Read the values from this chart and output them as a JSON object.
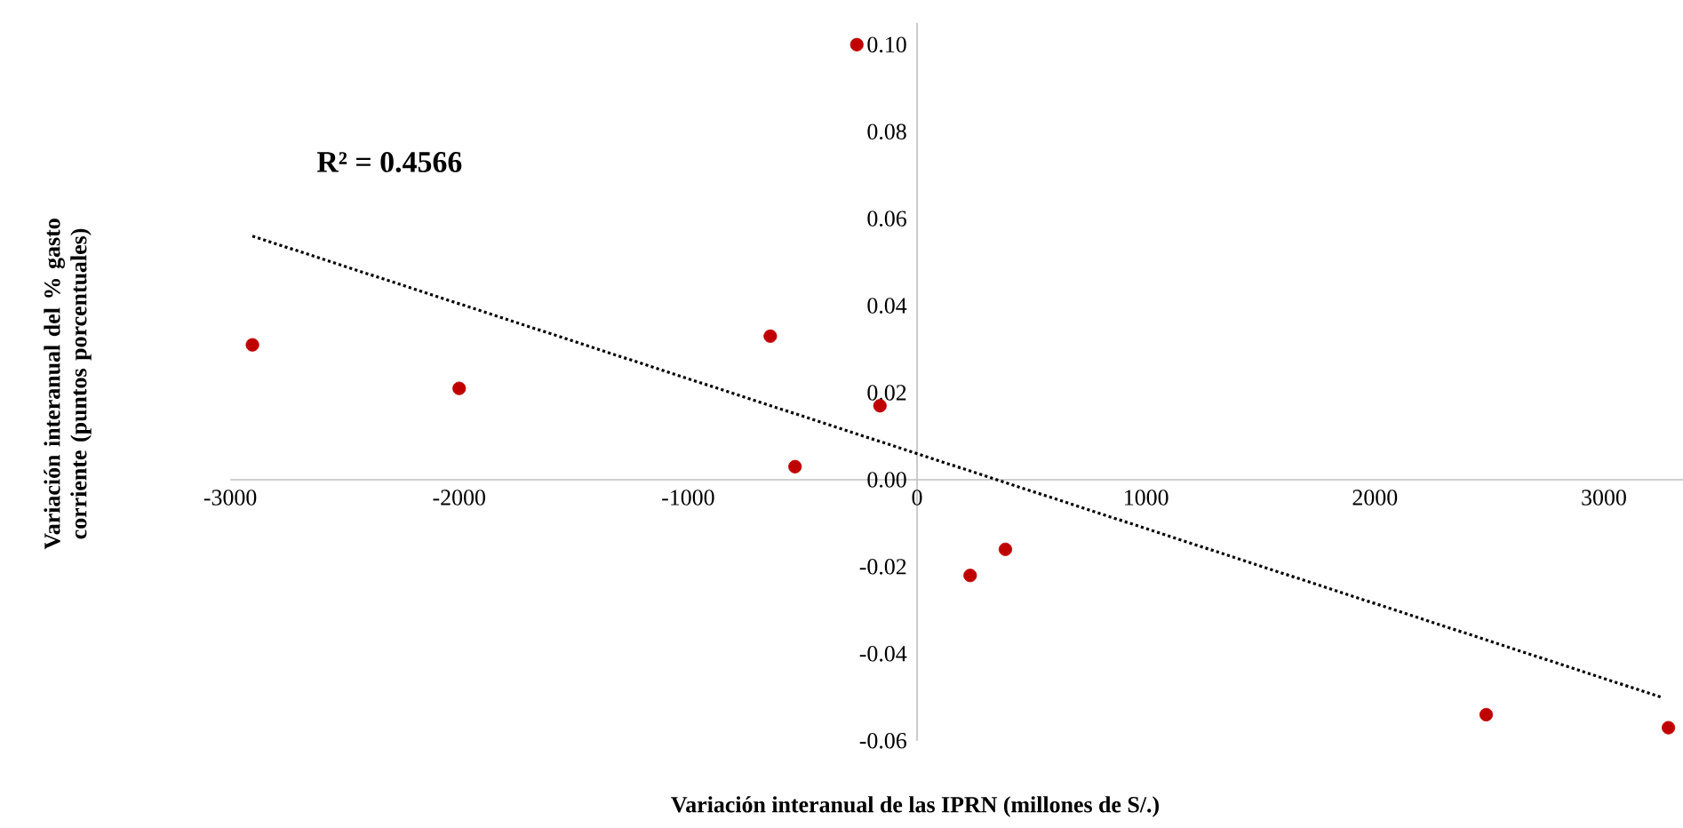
{
  "chart_data": {
    "type": "scatter",
    "xlabel": "Variación interanual de las IPRN (millones de S/.)",
    "ylabel": "Variación interanual del % gasto corriente (puntos porcentuales)",
    "annotations": [
      "R² = 0.4566"
    ],
    "series": [
      {
        "color": "#c00000",
        "marker": "circle",
        "x": [
          -2903,
          -2000,
          -641,
          -533,
          -263,
          -162,
          232,
          386,
          2486,
          3282
        ],
        "values": [
          0.031,
          0.021,
          0.033,
          0.003,
          0.1,
          0.017,
          -0.022,
          -0.016,
          -0.054,
          -0.057
        ]
      },
      {
        "type": "line",
        "color": "#000000",
        "marker": "none",
        "line_style": "dotted",
        "x": [
          -2903,
          3251
        ],
        "values": [
          0.056,
          -0.05
        ]
      }
    ],
    "xlim": [
      -3000,
      3350
    ],
    "ylim": [
      -0.06,
      0.105
    ],
    "xticks": [
      -3000,
      -2000,
      -1000,
      0,
      1000,
      2000,
      3000
    ],
    "yticks": [
      {
        "value": -0.06,
        "label": "-0.06"
      },
      {
        "value": -0.04,
        "label": "-0.04"
      },
      {
        "value": -0.02,
        "label": "-0.02"
      },
      {
        "value": 0,
        "label": "0.00"
      },
      {
        "value": 0.02,
        "label": "0.02"
      },
      {
        "value": 0.04,
        "label": "0.04"
      },
      {
        "value": 0.06,
        "label": "0.06"
      },
      {
        "value": 0.08,
        "label": "0.08"
      },
      {
        "value": 0.1,
        "label": "0.10"
      }
    ],
    "grid": false
  }
}
